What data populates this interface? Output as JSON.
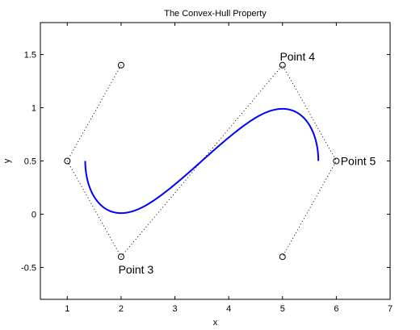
{
  "chart_data": {
    "type": "line",
    "title": "The Convex-Hull Property",
    "xlabel": "x",
    "ylabel": "y",
    "xlim": [
      0.5,
      7
    ],
    "ylim": [
      -0.8,
      1.8
    ],
    "xticks": [
      1,
      2,
      3,
      4,
      5,
      6,
      7
    ],
    "xtick_labels": [
      "1",
      "2",
      "3",
      "4",
      "5",
      "6",
      "7"
    ],
    "yticks": [
      -0.5,
      0,
      0.5,
      1,
      1.5
    ],
    "ytick_labels": [
      "-0.5",
      "0",
      "0.5",
      "1",
      "1.5"
    ],
    "grid": false,
    "control_points": [
      {
        "x": 2,
        "y": 1.4
      },
      {
        "x": 1,
        "y": 0.5
      },
      {
        "x": 2,
        "y": -0.4
      },
      {
        "x": 5,
        "y": 1.4
      },
      {
        "x": 6,
        "y": 0.5
      },
      {
        "x": 5,
        "y": -0.4
      }
    ],
    "hull_color": "#000000",
    "curve_color": "#0000ff",
    "annotations": [
      {
        "text": "Point 3",
        "x": 1.95,
        "y": -0.52
      },
      {
        "text": "Point 4",
        "x": 4.95,
        "y": 1.48
      },
      {
        "text": "Point 5",
        "x": 6.08,
        "y": 0.5
      }
    ]
  }
}
